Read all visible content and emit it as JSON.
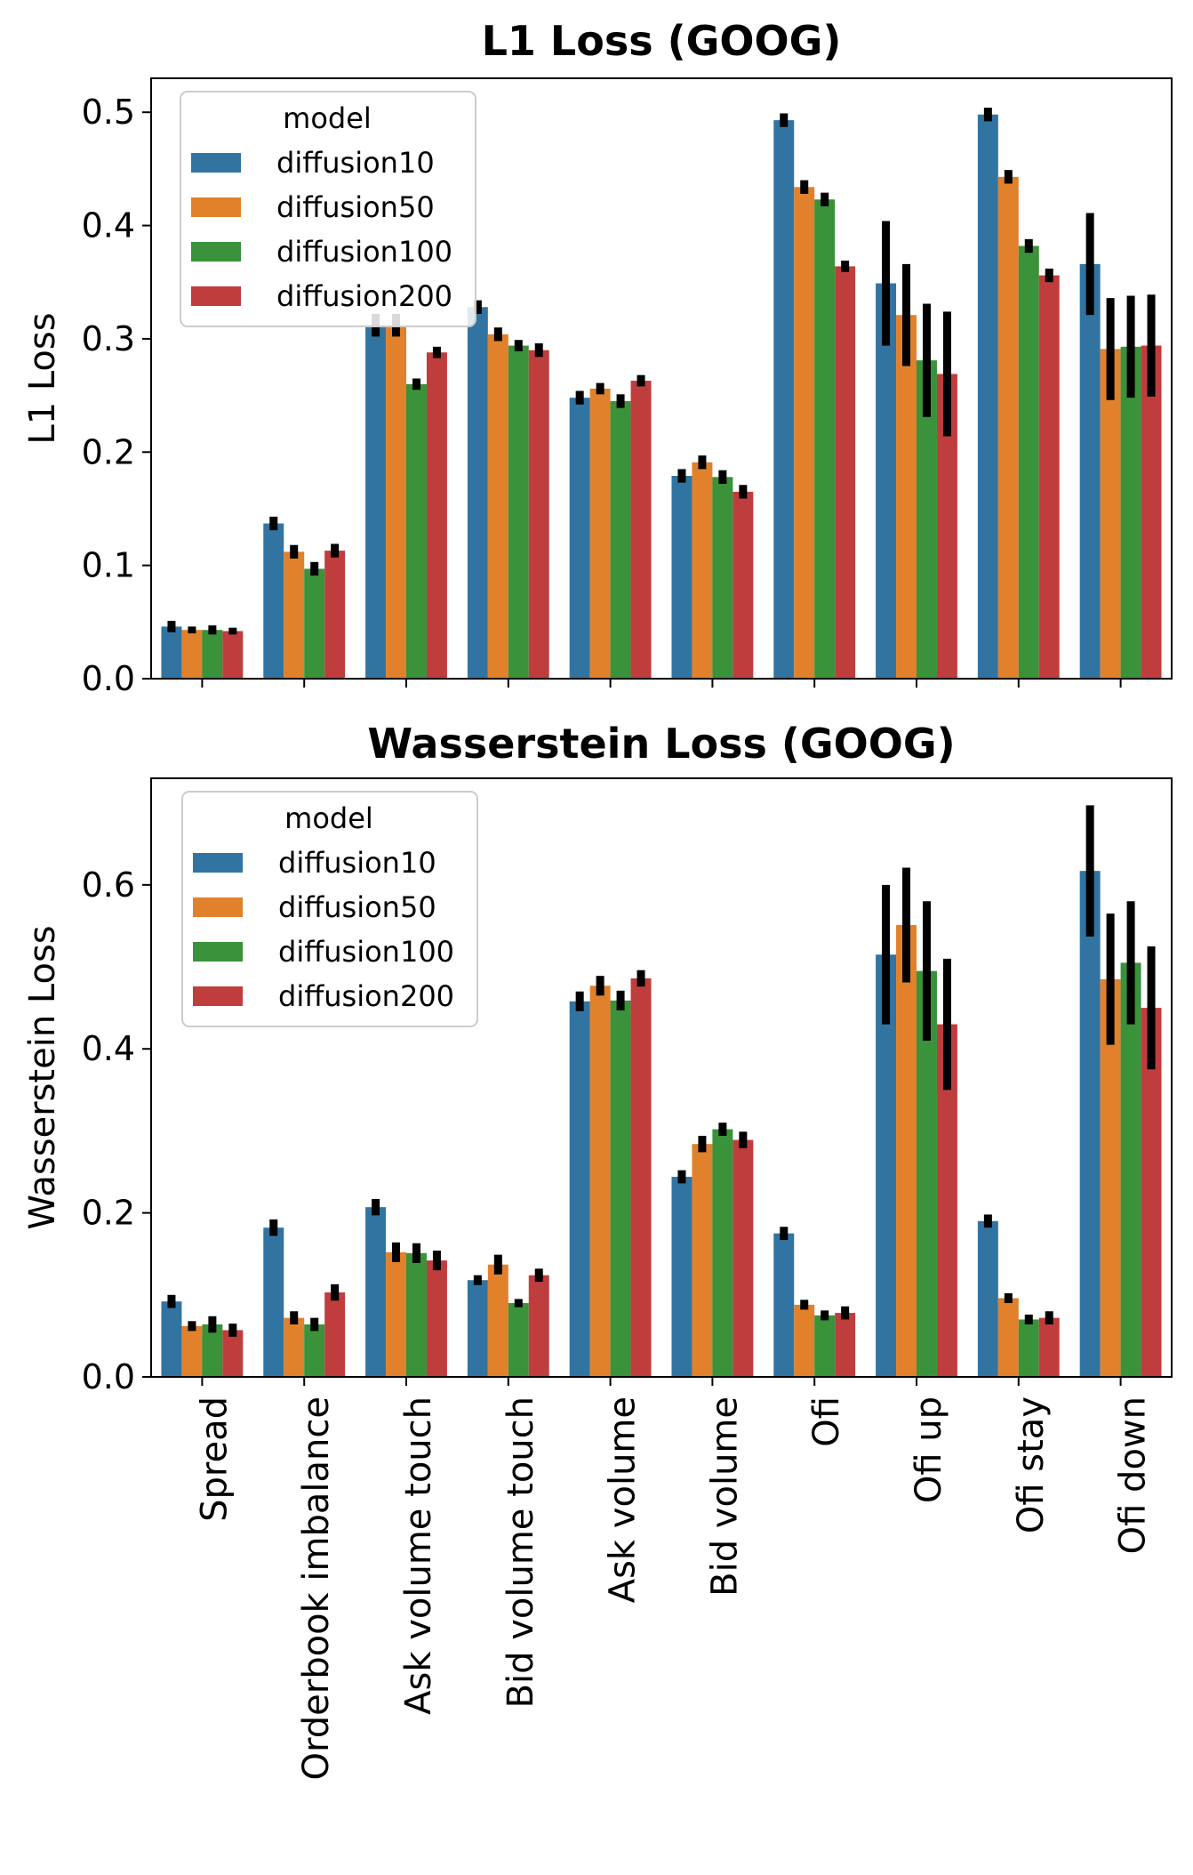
{
  "chart_data": [
    {
      "type": "bar",
      "title": "L1 Loss (GOOG)",
      "xlabel": "",
      "ylabel": "L1 Loss",
      "ylim": [
        0,
        0.53
      ],
      "yticks": [
        0.0,
        0.1,
        0.2,
        0.3,
        0.4,
        0.5
      ],
      "ytick_labels": [
        "0.0",
        "0.1",
        "0.2",
        "0.3",
        "0.4",
        "0.5"
      ],
      "show_xtick_labels": false,
      "legend_title": "model",
      "legend_position": "top-left",
      "categories": [
        "Spread",
        "Orderbook imbalance",
        "Ask volume touch",
        "Bid volume touch",
        "Ask volume",
        "Bid volume",
        "Ofi",
        "Ofi up",
        "Ofi stay",
        "Ofi down"
      ],
      "series": [
        {
          "name": "diffusion10",
          "color": "#3274a1",
          "values": [
            0.046,
            0.137,
            0.312,
            0.328,
            0.248,
            0.179,
            0.493,
            0.349,
            0.498,
            0.366
          ],
          "err": [
            0.005,
            0.006,
            0.01,
            0.006,
            0.006,
            0.006,
            0.006,
            0.055,
            0.006,
            0.045
          ]
        },
        {
          "name": "diffusion50",
          "color": "#e1812c",
          "values": [
            0.043,
            0.112,
            0.312,
            0.304,
            0.256,
            0.191,
            0.434,
            0.321,
            0.443,
            0.291
          ],
          "err": [
            0.003,
            0.006,
            0.01,
            0.006,
            0.005,
            0.006,
            0.006,
            0.045,
            0.006,
            0.045
          ]
        },
        {
          "name": "diffusion100",
          "color": "#3a923a",
          "values": [
            0.043,
            0.097,
            0.26,
            0.294,
            0.245,
            0.178,
            0.423,
            0.281,
            0.382,
            0.293
          ],
          "err": [
            0.004,
            0.006,
            0.005,
            0.005,
            0.006,
            0.006,
            0.006,
            0.05,
            0.006,
            0.045
          ]
        },
        {
          "name": "diffusion200",
          "color": "#c03d3e",
          "values": [
            0.042,
            0.113,
            0.288,
            0.29,
            0.263,
            0.165,
            0.364,
            0.269,
            0.356,
            0.294
          ],
          "err": [
            0.003,
            0.006,
            0.005,
            0.006,
            0.005,
            0.006,
            0.005,
            0.055,
            0.006,
            0.045
          ]
        }
      ]
    },
    {
      "type": "bar",
      "title": "Wasserstein Loss (GOOG)",
      "xlabel": "",
      "ylabel": "Wasserstein Loss",
      "ylim": [
        0,
        0.73
      ],
      "yticks": [
        0.0,
        0.2,
        0.4,
        0.6
      ],
      "ytick_labels": [
        "0.0",
        "0.2",
        "0.4",
        "0.6"
      ],
      "show_xtick_labels": true,
      "legend_title": "model",
      "legend_position": "top-left",
      "categories": [
        "Spread",
        "Orderbook imbalance",
        "Ask volume touch",
        "Bid volume touch",
        "Ask volume",
        "Bid volume",
        "Ofi",
        "Ofi up",
        "Ofi stay",
        "Ofi down"
      ],
      "series": [
        {
          "name": "diffusion10",
          "color": "#3274a1",
          "values": [
            0.092,
            0.182,
            0.207,
            0.118,
            0.458,
            0.244,
            0.175,
            0.515,
            0.19,
            0.617
          ],
          "err": [
            0.008,
            0.01,
            0.01,
            0.006,
            0.012,
            0.008,
            0.008,
            0.085,
            0.008,
            0.08
          ]
        },
        {
          "name": "diffusion50",
          "color": "#e1812c",
          "values": [
            0.062,
            0.072,
            0.152,
            0.137,
            0.477,
            0.284,
            0.088,
            0.551,
            0.096,
            0.485
          ],
          "err": [
            0.006,
            0.008,
            0.012,
            0.012,
            0.012,
            0.01,
            0.006,
            0.07,
            0.006,
            0.08
          ]
        },
        {
          "name": "diffusion100",
          "color": "#3a923a",
          "values": [
            0.064,
            0.064,
            0.151,
            0.09,
            0.459,
            0.302,
            0.075,
            0.495,
            0.07,
            0.505
          ],
          "err": [
            0.01,
            0.008,
            0.012,
            0.005,
            0.012,
            0.008,
            0.006,
            0.085,
            0.006,
            0.075
          ]
        },
        {
          "name": "diffusion200",
          "color": "#c03d3e",
          "values": [
            0.057,
            0.103,
            0.142,
            0.124,
            0.486,
            0.289,
            0.078,
            0.43,
            0.072,
            0.45
          ],
          "err": [
            0.008,
            0.01,
            0.012,
            0.008,
            0.01,
            0.01,
            0.008,
            0.08,
            0.008,
            0.075
          ]
        }
      ]
    }
  ]
}
